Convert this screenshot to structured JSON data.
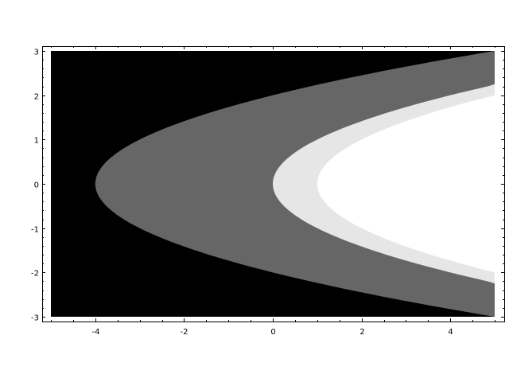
{
  "chart_data": {
    "type": "area",
    "title": "",
    "xlabel": "",
    "ylabel": "",
    "xlim": [
      -5,
      5
    ],
    "ylim": [
      -3,
      3
    ],
    "x_ticks": [
      {
        "value": -4,
        "label": "-4"
      },
      {
        "value": -2,
        "label": "-2"
      },
      {
        "value": 0,
        "label": "0"
      },
      {
        "value": 2,
        "label": "2"
      },
      {
        "value": 4,
        "label": "4"
      }
    ],
    "y_ticks": [
      {
        "value": -3,
        "label": "-3"
      },
      {
        "value": -2,
        "label": "-2"
      },
      {
        "value": -1,
        "label": "-1"
      },
      {
        "value": 0,
        "label": "0"
      },
      {
        "value": 1,
        "label": "1"
      },
      {
        "value": 2,
        "label": "2"
      },
      {
        "value": 3,
        "label": "3"
      }
    ],
    "grid": false,
    "regions": [
      {
        "fill": "#000000",
        "boundary": "x < y^2 - 4"
      },
      {
        "fill": "#666666",
        "boundary": "y^2 - 4 <= x < y^2"
      },
      {
        "fill": "#e6e6e6",
        "boundary": "y^2 <= x < y^2 + 1"
      },
      {
        "fill": "#ffffff",
        "boundary": "x >= y^2 + 1"
      }
    ],
    "boundary_curves": [
      {
        "vertex_x": -4,
        "equation": "x = y^2 - 4"
      },
      {
        "vertex_x": 0,
        "equation": "x = y^2"
      },
      {
        "vertex_x": 1,
        "equation": "x = y^2 + 1"
      }
    ]
  }
}
